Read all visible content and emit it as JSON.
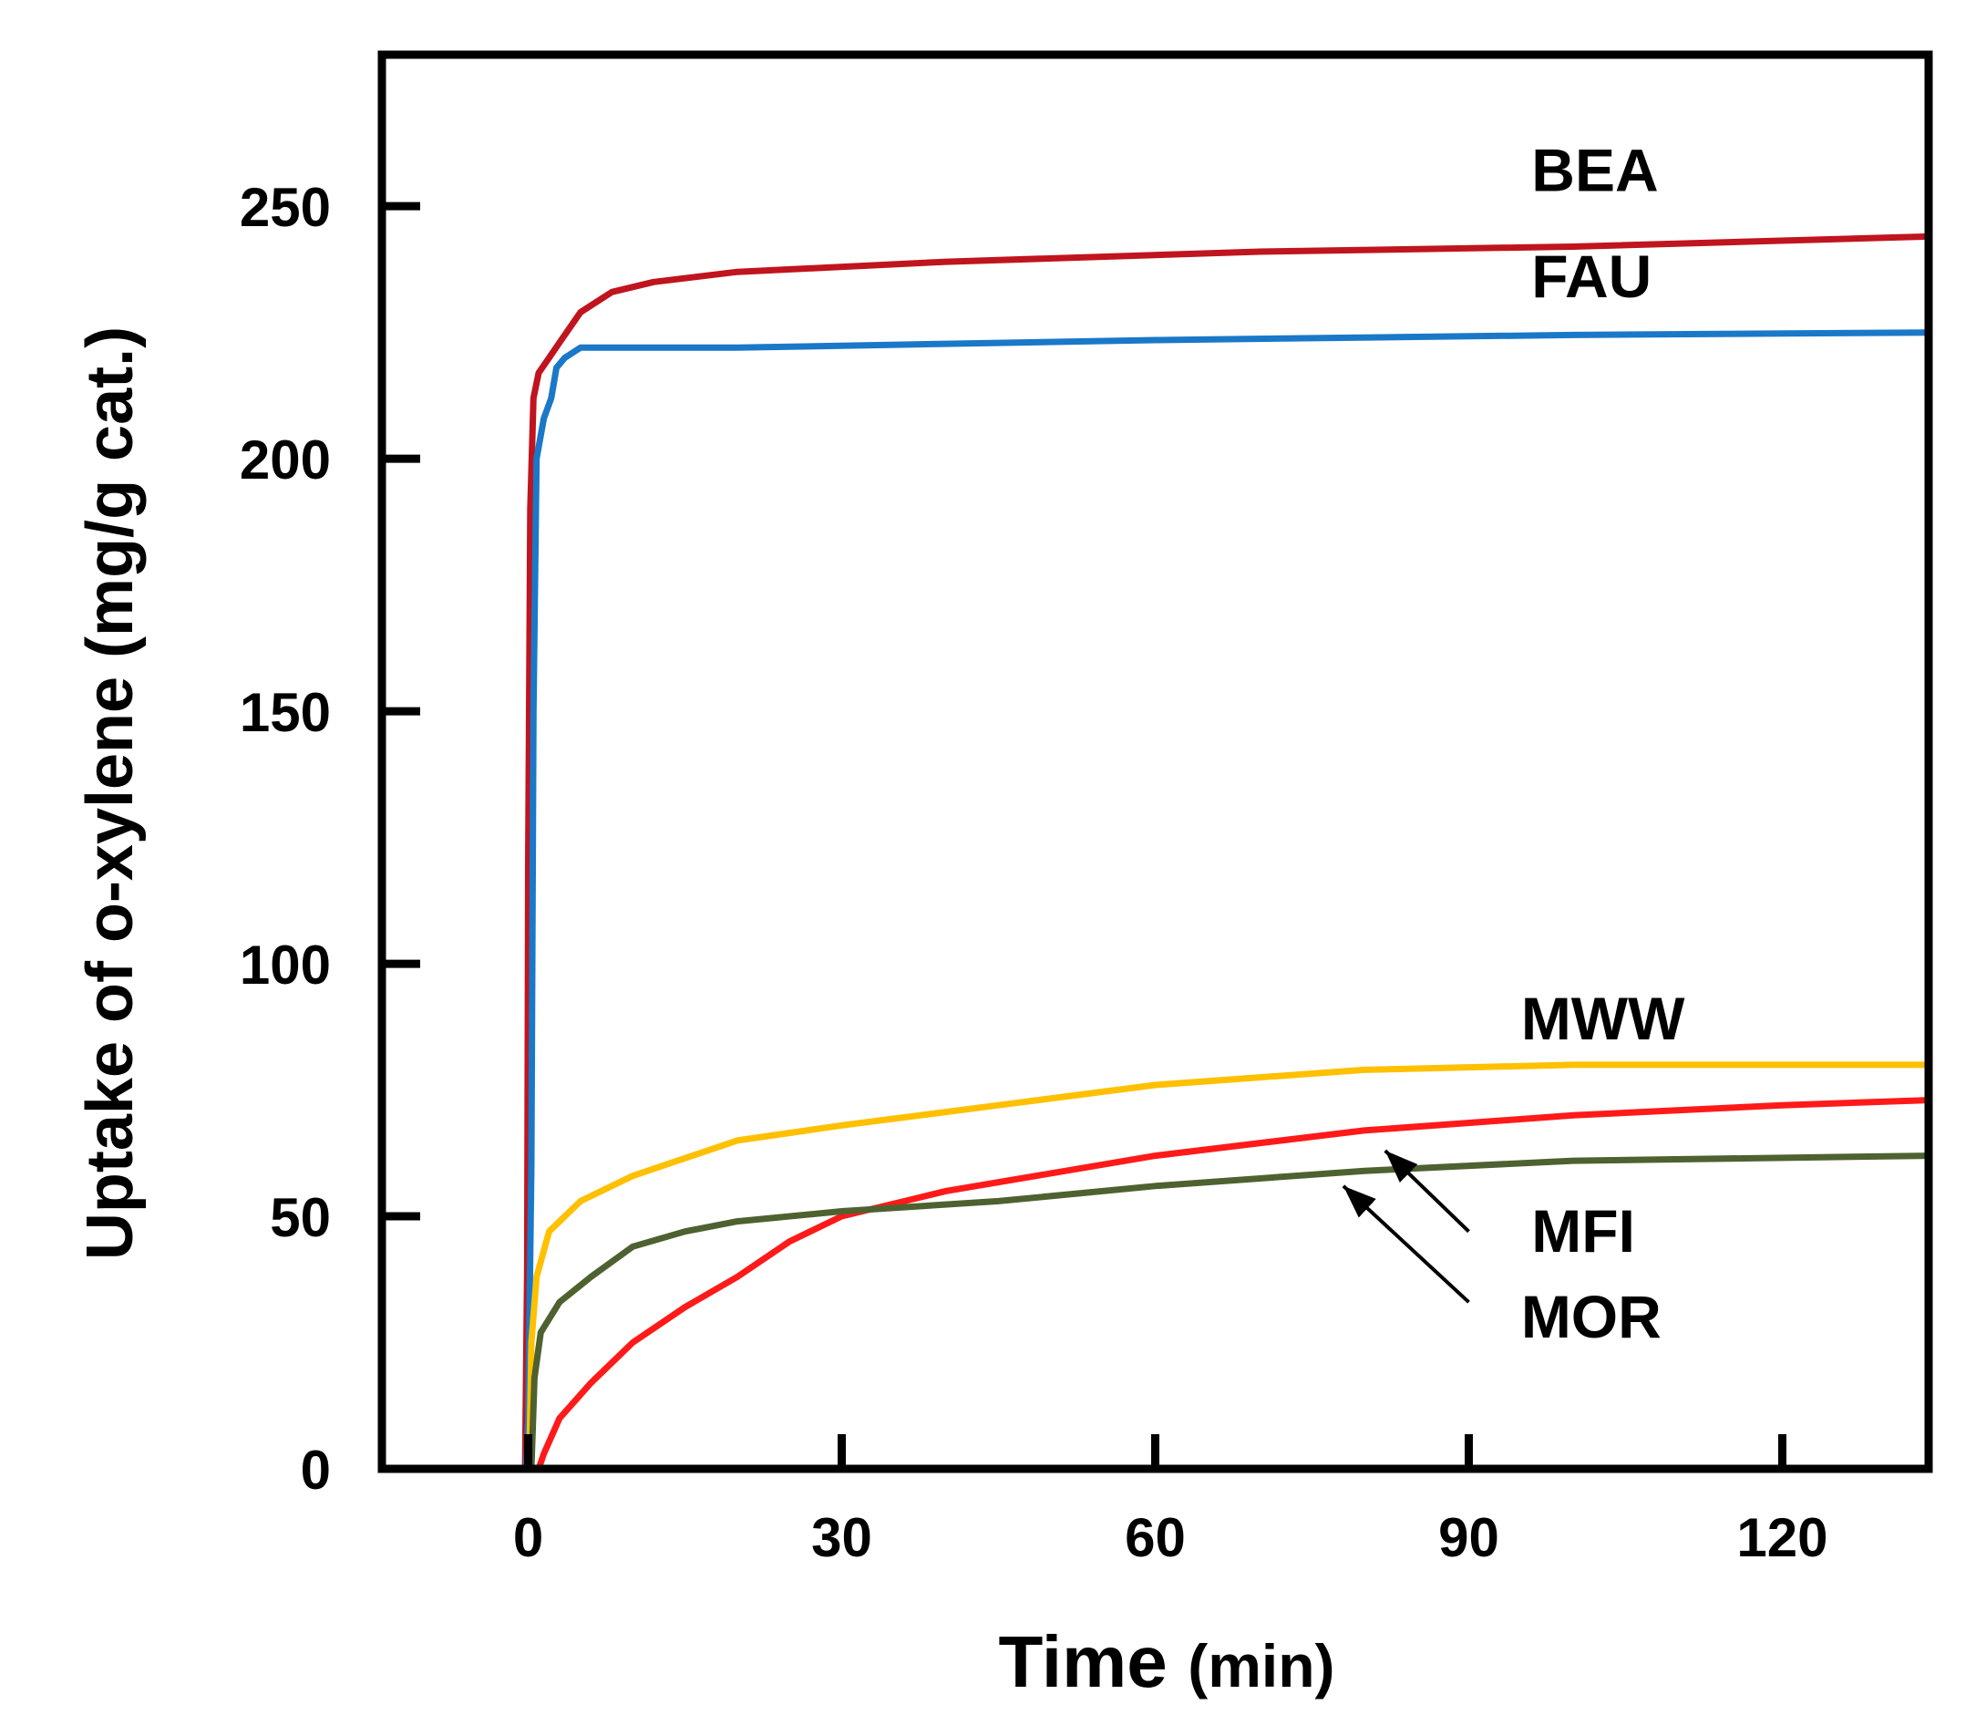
{
  "chart_data": {
    "type": "line",
    "title": "",
    "xlabel": "Time",
    "xlabel_unit": "(min)",
    "ylabel": "Uptake of o-xylene (mg/g cat.)",
    "xlim": [
      -14,
      134
    ],
    "ylim": [
      0,
      280
    ],
    "xticks": [
      0,
      30,
      60,
      90,
      120
    ],
    "yticks": [
      0,
      50,
      100,
      150,
      200,
      250
    ],
    "series": [
      {
        "name": "BEA",
        "color": "#c0141e",
        "points": [
          [
            -0.3,
            0
          ],
          [
            -0.1,
            40
          ],
          [
            0,
            120
          ],
          [
            0.2,
            190
          ],
          [
            0.5,
            212
          ],
          [
            1,
            217
          ],
          [
            2,
            220
          ],
          [
            3,
            223
          ],
          [
            5,
            229
          ],
          [
            8,
            233
          ],
          [
            12,
            235
          ],
          [
            20,
            237
          ],
          [
            40,
            239
          ],
          [
            70,
            241
          ],
          [
            100,
            242
          ],
          [
            134,
            244
          ]
        ]
      },
      {
        "name": "FAU",
        "color": "#1a78c8",
        "points": [
          [
            -0.2,
            0
          ],
          [
            0,
            10
          ],
          [
            0.3,
            60
          ],
          [
            0.5,
            150
          ],
          [
            0.8,
            200
          ],
          [
            1.5,
            208
          ],
          [
            2.2,
            212
          ],
          [
            2.7,
            218
          ],
          [
            3.5,
            220
          ],
          [
            5,
            222
          ],
          [
            20,
            222
          ],
          [
            60,
            223.5
          ],
          [
            100,
            224.5
          ],
          [
            134,
            225
          ]
        ]
      },
      {
        "name": "MWW",
        "color": "#ffc000",
        "points": [
          [
            0.1,
            0
          ],
          [
            0.3,
            25
          ],
          [
            0.8,
            38
          ],
          [
            2,
            47
          ],
          [
            5,
            53
          ],
          [
            10,
            58
          ],
          [
            20,
            65
          ],
          [
            30,
            68
          ],
          [
            45,
            72
          ],
          [
            60,
            76
          ],
          [
            80,
            79
          ],
          [
            100,
            80
          ],
          [
            134,
            80
          ]
        ]
      },
      {
        "name": "MFI",
        "color": "#ff1a1a",
        "points": [
          [
            1,
            0
          ],
          [
            1.5,
            3
          ],
          [
            3,
            10
          ],
          [
            6,
            17
          ],
          [
            10,
            25
          ],
          [
            15,
            32
          ],
          [
            20,
            38
          ],
          [
            25,
            45
          ],
          [
            30,
            50
          ],
          [
            40,
            55
          ],
          [
            60,
            62
          ],
          [
            80,
            67
          ],
          [
            100,
            70
          ],
          [
            120,
            72
          ],
          [
            134,
            73
          ]
        ]
      },
      {
        "name": "MOR",
        "color": "#4e6130",
        "points": [
          [
            0.3,
            0
          ],
          [
            0.6,
            18
          ],
          [
            1.2,
            27
          ],
          [
            3,
            33
          ],
          [
            6,
            38
          ],
          [
            10,
            44
          ],
          [
            15,
            47
          ],
          [
            20,
            49
          ],
          [
            30,
            51
          ],
          [
            45,
            53
          ],
          [
            60,
            56
          ],
          [
            80,
            59
          ],
          [
            100,
            61
          ],
          [
            134,
            62
          ]
        ]
      }
    ],
    "annotations": [
      {
        "text": "BEA",
        "x": 96,
        "y": 253
      },
      {
        "text": "FAU",
        "x": 96,
        "y": 232
      },
      {
        "text": "MWW",
        "x": 95,
        "y": 85
      },
      {
        "text": "MFI",
        "x": 96,
        "y": 43
      },
      {
        "text": "MOR",
        "x": 95,
        "y": 26
      }
    ],
    "arrows": [
      {
        "target": "MFI",
        "from": [
          90,
          47
        ],
        "to": [
          82,
          63
        ]
      },
      {
        "target": "MOR",
        "from": [
          90,
          33
        ],
        "to": [
          78,
          56
        ]
      }
    ]
  }
}
